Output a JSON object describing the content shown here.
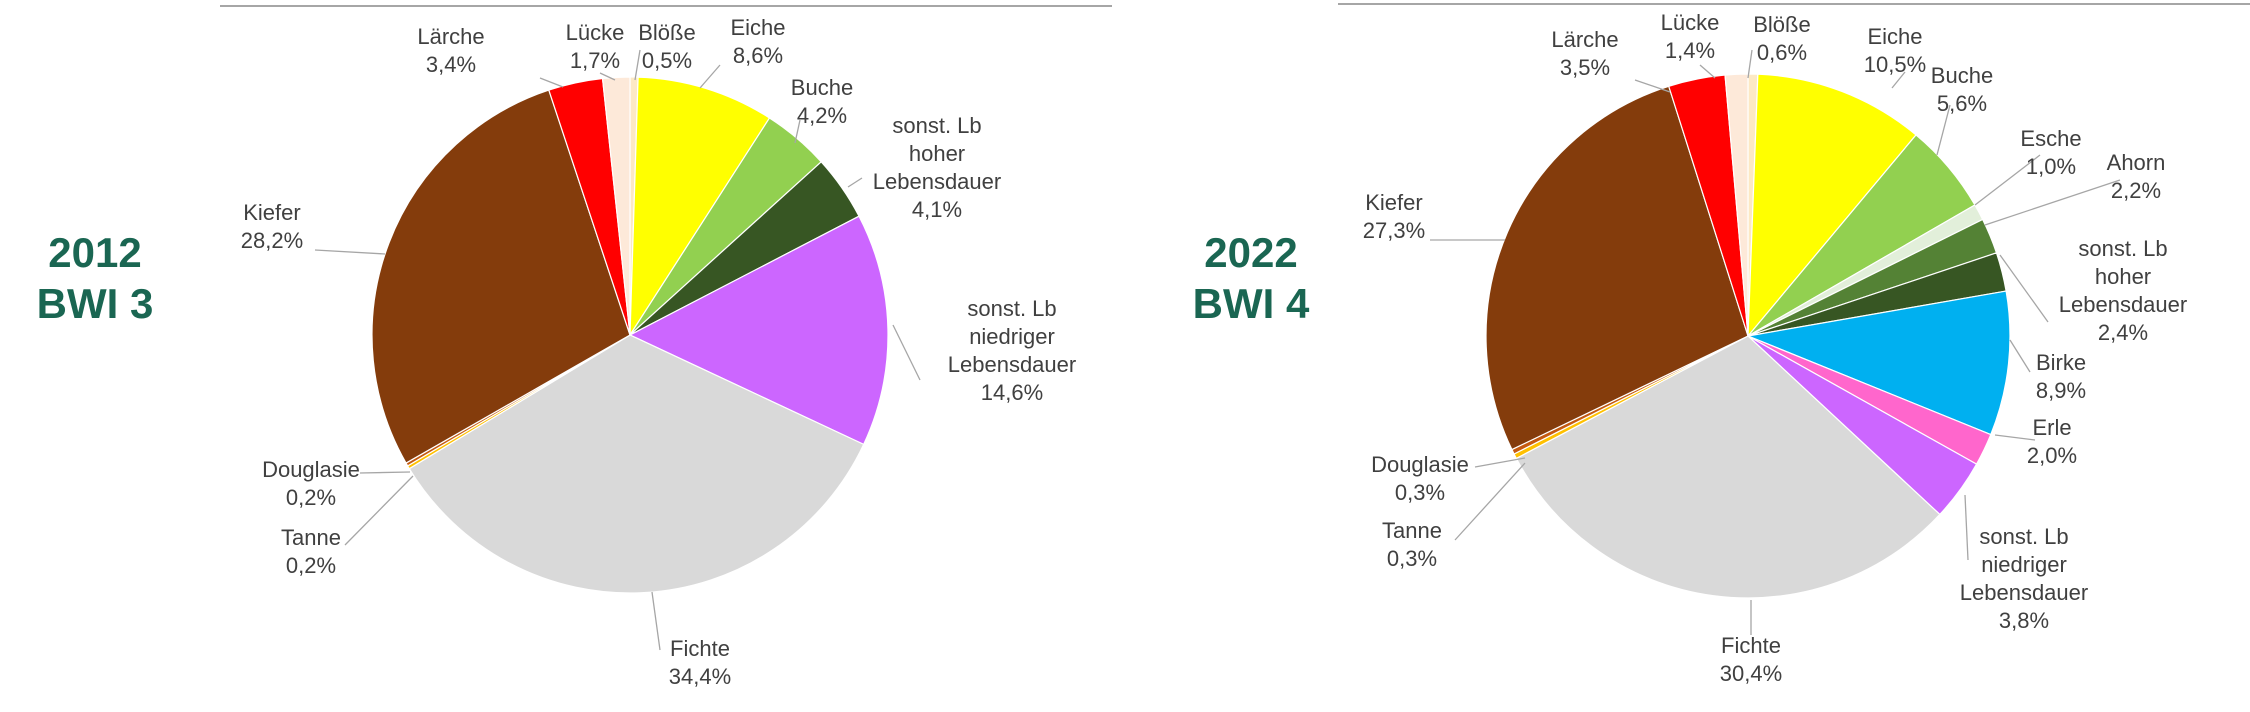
{
  "chart_data": [
    {
      "type": "pie",
      "title_line1": "2012",
      "title_line2": "BWI 3",
      "slices": [
        {
          "label": "Blöße",
          "value": 0.5,
          "value_text": "0,5%",
          "color": "#fde9c4"
        },
        {
          "label": "Eiche",
          "value": 8.6,
          "value_text": "8,6%",
          "color": "#ffff00"
        },
        {
          "label": "Buche",
          "value": 4.2,
          "value_text": "4,2%",
          "color": "#92d050"
        },
        {
          "label": "sonst. Lb hoher Lebensdauer",
          "value": 4.1,
          "value_text": "4,1%",
          "color": "#375623"
        },
        {
          "label": "sonst. Lb niedriger Lebensdauer",
          "value": 14.6,
          "value_text": "14,6%",
          "color": "#cc66ff"
        },
        {
          "label": "Fichte",
          "value": 34.4,
          "value_text": "34,4%",
          "color": "#d9d9d9"
        },
        {
          "label": "Tanne",
          "value": 0.2,
          "value_text": "0,2%",
          "color": "#ffc000"
        },
        {
          "label": "Douglasie",
          "value": 0.2,
          "value_text": "0,2%",
          "color": "#c55a11"
        },
        {
          "label": "Kiefer",
          "value": 28.2,
          "value_text": "28,2%",
          "color": "#843c0c"
        },
        {
          "label": "Lärche",
          "value": 3.4,
          "value_text": "3,4%",
          "color": "#ff0000"
        },
        {
          "label": "Lücke",
          "value": 1.7,
          "value_text": "1,7%",
          "color": "#fde9d9"
        }
      ]
    },
    {
      "type": "pie",
      "title_line1": "2022",
      "title_line2": "BWI 4",
      "slices": [
        {
          "label": "Blöße",
          "value": 0.6,
          "value_text": "0,6%",
          "color": "#fde9c4"
        },
        {
          "label": "Eiche",
          "value": 10.5,
          "value_text": "10,5%",
          "color": "#ffff00"
        },
        {
          "label": "Buche",
          "value": 5.6,
          "value_text": "5,6%",
          "color": "#92d050"
        },
        {
          "label": "Esche",
          "value": 1.0,
          "value_text": "1,0%",
          "color": "#e2efda"
        },
        {
          "label": "Ahorn",
          "value": 2.2,
          "value_text": "2,2%",
          "color": "#548235"
        },
        {
          "label": "sonst. Lb hoher Lebensdauer",
          "value": 2.4,
          "value_text": "2,4%",
          "color": "#375623"
        },
        {
          "label": "Birke",
          "value": 8.9,
          "value_text": "8,9%",
          "color": "#00b0f0"
        },
        {
          "label": "Erle",
          "value": 2.0,
          "value_text": "2,0%",
          "color": "#ff66cc"
        },
        {
          "label": "sonst. Lb niedriger Lebensdauer",
          "value": 3.8,
          "value_text": "3,8%",
          "color": "#cc66ff"
        },
        {
          "label": "Fichte",
          "value": 30.4,
          "value_text": "30,4%",
          "color": "#d9d9d9"
        },
        {
          "label": "Tanne",
          "value": 0.3,
          "value_text": "0,3%",
          "color": "#ffc000"
        },
        {
          "label": "Douglasie",
          "value": 0.3,
          "value_text": "0,3%",
          "color": "#c55a11"
        },
        {
          "label": "Kiefer",
          "value": 27.3,
          "value_text": "27,3%",
          "color": "#843c0c"
        },
        {
          "label": "Lärche",
          "value": 3.5,
          "value_text": "3,5%",
          "color": "#ff0000"
        },
        {
          "label": "Lücke",
          "value": 1.4,
          "value_text": "1,4%",
          "color": "#fde9d9"
        }
      ]
    }
  ]
}
